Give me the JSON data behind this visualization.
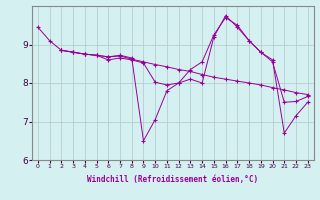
{
  "title": "",
  "xlabel": "Windchill (Refroidissement éolien,°C)",
  "ylabel": "",
  "bg_color": "#d4f0f0",
  "line_color": "#990099",
  "grid_color": "#b0c8c8",
  "xlim": [
    -0.5,
    23.5
  ],
  "ylim": [
    6.0,
    10.0
  ],
  "yticks": [
    6,
    7,
    8,
    9
  ],
  "xticks": [
    0,
    1,
    2,
    3,
    4,
    5,
    6,
    7,
    8,
    9,
    10,
    11,
    12,
    13,
    14,
    15,
    16,
    17,
    18,
    19,
    20,
    21,
    22,
    23
  ],
  "line1_x": [
    0,
    1,
    2,
    3,
    4,
    5,
    6,
    7,
    8,
    9,
    10,
    11,
    12,
    13,
    14,
    15,
    16,
    17,
    18,
    19,
    20,
    21,
    22,
    23
  ],
  "line1_y": [
    9.45,
    9.1,
    8.85,
    8.8,
    8.75,
    8.72,
    8.68,
    8.7,
    8.62,
    8.55,
    8.48,
    8.42,
    8.35,
    8.3,
    8.22,
    8.15,
    8.1,
    8.05,
    8.0,
    7.95,
    7.88,
    7.82,
    7.75,
    7.7
  ],
  "line2_x": [
    2,
    3,
    4,
    5,
    6,
    7,
    8,
    9,
    10,
    11,
    12,
    13,
    14,
    15,
    16,
    17,
    18,
    19,
    20,
    21,
    22,
    23
  ],
  "line2_y": [
    8.85,
    8.8,
    8.75,
    8.72,
    8.68,
    8.72,
    8.65,
    6.5,
    7.05,
    7.8,
    8.0,
    8.35,
    8.55,
    9.25,
    9.7,
    9.5,
    9.1,
    8.8,
    8.6,
    6.7,
    7.15,
    7.5
  ],
  "line3_x": [
    2,
    3,
    4,
    5,
    6,
    7,
    8,
    9,
    10,
    11,
    12,
    13,
    14,
    15,
    16,
    17,
    18,
    19,
    20,
    21,
    22,
    23
  ],
  "line3_y": [
    8.85,
    8.8,
    8.75,
    8.72,
    8.6,
    8.65,
    8.6,
    8.52,
    8.02,
    7.95,
    8.0,
    8.1,
    8.0,
    9.2,
    9.75,
    9.45,
    9.1,
    8.8,
    8.55,
    7.5,
    7.52,
    7.65
  ]
}
